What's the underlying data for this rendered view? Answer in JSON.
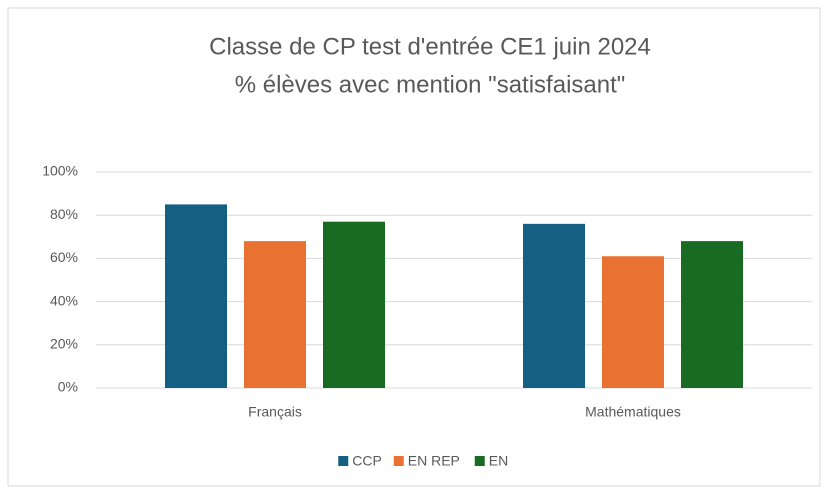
{
  "chart_data": {
    "type": "bar",
    "title": "Classe de CP test d'entrée CE1 juin 2024",
    "subtitle": "% élèves avec mention \"satisfaisant\"",
    "categories": [
      "Français",
      "Mathématiques"
    ],
    "series": [
      {
        "name": "CCP",
        "color": "#156082",
        "values": [
          85,
          76
        ]
      },
      {
        "name": "EN REP",
        "color": "#e97132",
        "values": [
          68,
          61
        ]
      },
      {
        "name": "EN",
        "color": "#196b24",
        "values": [
          77,
          68
        ]
      }
    ],
    "ylim": [
      0,
      100
    ],
    "yticks": [
      {
        "value": 0,
        "label": "0%"
      },
      {
        "value": 20,
        "label": "20%"
      },
      {
        "value": 40,
        "label": "40%"
      },
      {
        "value": 60,
        "label": "60%"
      },
      {
        "value": 80,
        "label": "80%"
      },
      {
        "value": 100,
        "label": "100%"
      }
    ],
    "grid": true,
    "legend": "bottom"
  }
}
